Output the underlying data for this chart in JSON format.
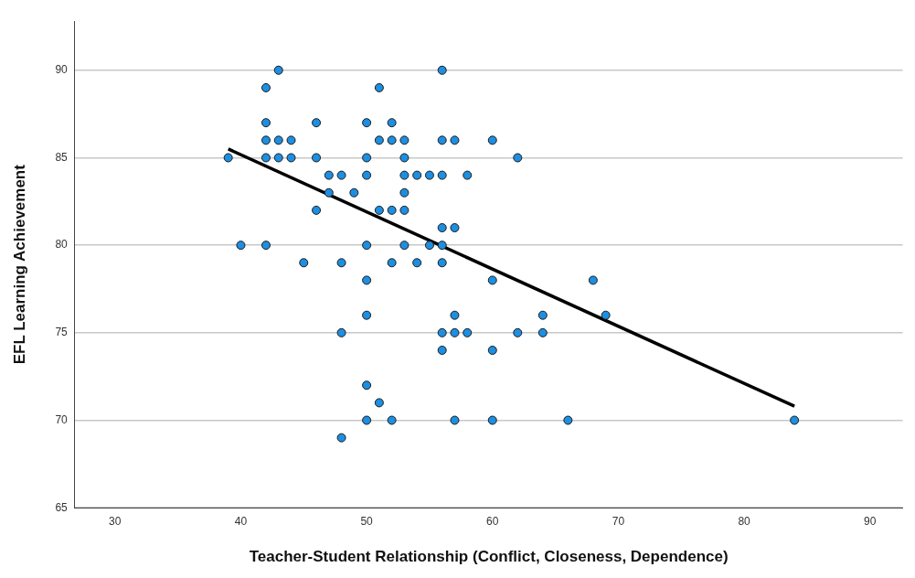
{
  "chart_data": {
    "type": "scatter",
    "xlabel": "Teacher-Student Relationship (Conflict, Closeness, Dependence)",
    "ylabel": "EFL Learning Achievement",
    "xlim": [
      26.8,
      92.6
    ],
    "ylim": [
      65,
      92.8
    ],
    "xticks": [
      30,
      40,
      50,
      60,
      70,
      80,
      90
    ],
    "yticks": [
      65,
      70,
      75,
      80,
      85,
      90
    ],
    "grid": "y",
    "legend": false,
    "marker": "circle",
    "series": [
      {
        "color": "#1e8ee0",
        "x": [
          43,
          56,
          42,
          51,
          42,
          46,
          50,
          52,
          42,
          43,
          44,
          51,
          52,
          53,
          56,
          57,
          60,
          39,
          42,
          43,
          44,
          46,
          50,
          53,
          62,
          47,
          48,
          50,
          53,
          54,
          55,
          56,
          58,
          47,
          49,
          53,
          46,
          51,
          52,
          53,
          56,
          57,
          40,
          42,
          50,
          53,
          55,
          56,
          45,
          48,
          52,
          54,
          56,
          50,
          60,
          68,
          50,
          57,
          64,
          69,
          48,
          56,
          57,
          58,
          62,
          64,
          56,
          60,
          50,
          51,
          50,
          52,
          57,
          60,
          66,
          84,
          48
        ],
        "values": [
          90,
          90,
          89,
          89,
          87,
          87,
          87,
          87,
          86,
          86,
          86,
          86,
          86,
          86,
          86,
          86,
          86,
          85,
          85,
          85,
          85,
          85,
          85,
          85,
          85,
          84,
          84,
          84,
          84,
          84,
          84,
          84,
          84,
          83,
          83,
          83,
          82,
          82,
          82,
          82,
          81,
          81,
          80,
          80,
          80,
          80,
          80,
          80,
          79,
          79,
          79,
          79,
          79,
          78,
          78,
          78,
          76,
          76,
          76,
          76,
          75,
          75,
          75,
          75,
          75,
          75,
          74,
          74,
          72,
          71,
          70,
          70,
          70,
          70,
          70,
          70,
          69
        ]
      },
      {
        "type": "line",
        "color": "#000000",
        "x": [
          39,
          84
        ],
        "values": [
          85.5,
          70.8
        ],
        "marker": "none",
        "line_style": "solid"
      }
    ]
  }
}
